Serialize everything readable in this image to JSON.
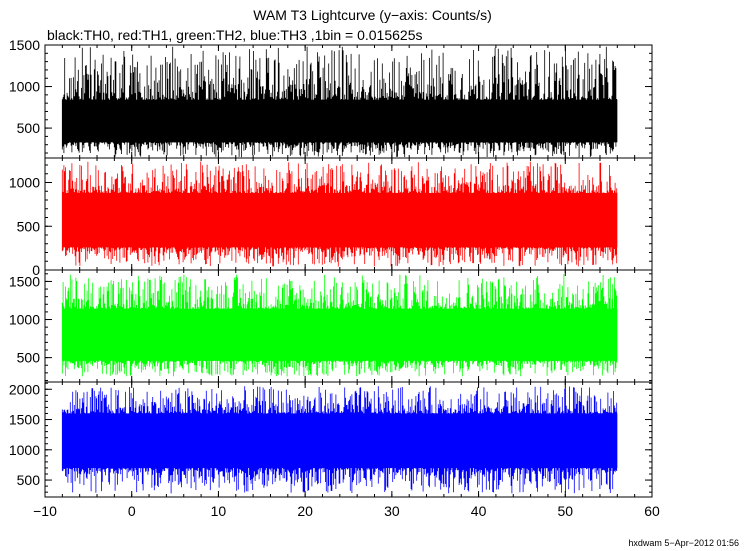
{
  "chart_data": {
    "type": "line",
    "title": "WAM T3 Lightcurve (y−axis: Counts/s)",
    "subtitle": "black:TH0, red:TH1, green:TH2, blue:TH3 ,1bin = 0.015625s",
    "xlim": [
      -10,
      60
    ],
    "x_ticks": [
      "−10",
      "0",
      "10",
      "20",
      "30",
      "40",
      "50",
      "60"
    ],
    "x_tick_values": [
      -10,
      0,
      10,
      20,
      30,
      40,
      50,
      60
    ],
    "data_x_range": [
      -8,
      56
    ],
    "grid": false,
    "panels": [
      {
        "series": "TH0",
        "color": "#000000",
        "ylim": [
          140,
          1500
        ],
        "y_ticks": [
          "1500",
          "1000",
          "500"
        ],
        "y_tick_values": [
          1500,
          1000,
          500
        ],
        "mean": 560,
        "core_low": 330,
        "core_high": 840,
        "spike_low": 150,
        "spike_high": 1480
      },
      {
        "series": "TH1",
        "color": "#ff0000",
        "ylim": [
          0,
          1280
        ],
        "y_ticks": [
          "1000",
          "500",
          "0"
        ],
        "y_tick_values": [
          1000,
          500,
          0
        ],
        "mean": 580,
        "core_low": 260,
        "core_high": 880,
        "spike_low": 40,
        "spike_high": 1240
      },
      {
        "series": "TH2",
        "color": "#00ff00",
        "ylim": [
          180,
          1650
        ],
        "y_ticks": [
          "1500",
          "1000",
          "500"
        ],
        "y_tick_values": [
          1500,
          1000,
          500
        ],
        "mean": 780,
        "core_low": 460,
        "core_high": 1140,
        "spike_low": 250,
        "spike_high": 1600
      },
      {
        "series": "TH3",
        "color": "#0000ff",
        "ylim": [
          220,
          2120
        ],
        "y_ticks": [
          "2000",
          "1500",
          "1000",
          "500"
        ],
        "y_tick_values": [
          2000,
          1500,
          1000,
          500
        ],
        "mean": 1150,
        "core_low": 700,
        "core_high": 1600,
        "spike_low": 280,
        "spike_high": 2050
      }
    ]
  },
  "footer": "hxdwam   5−Apr−2012 01:56"
}
